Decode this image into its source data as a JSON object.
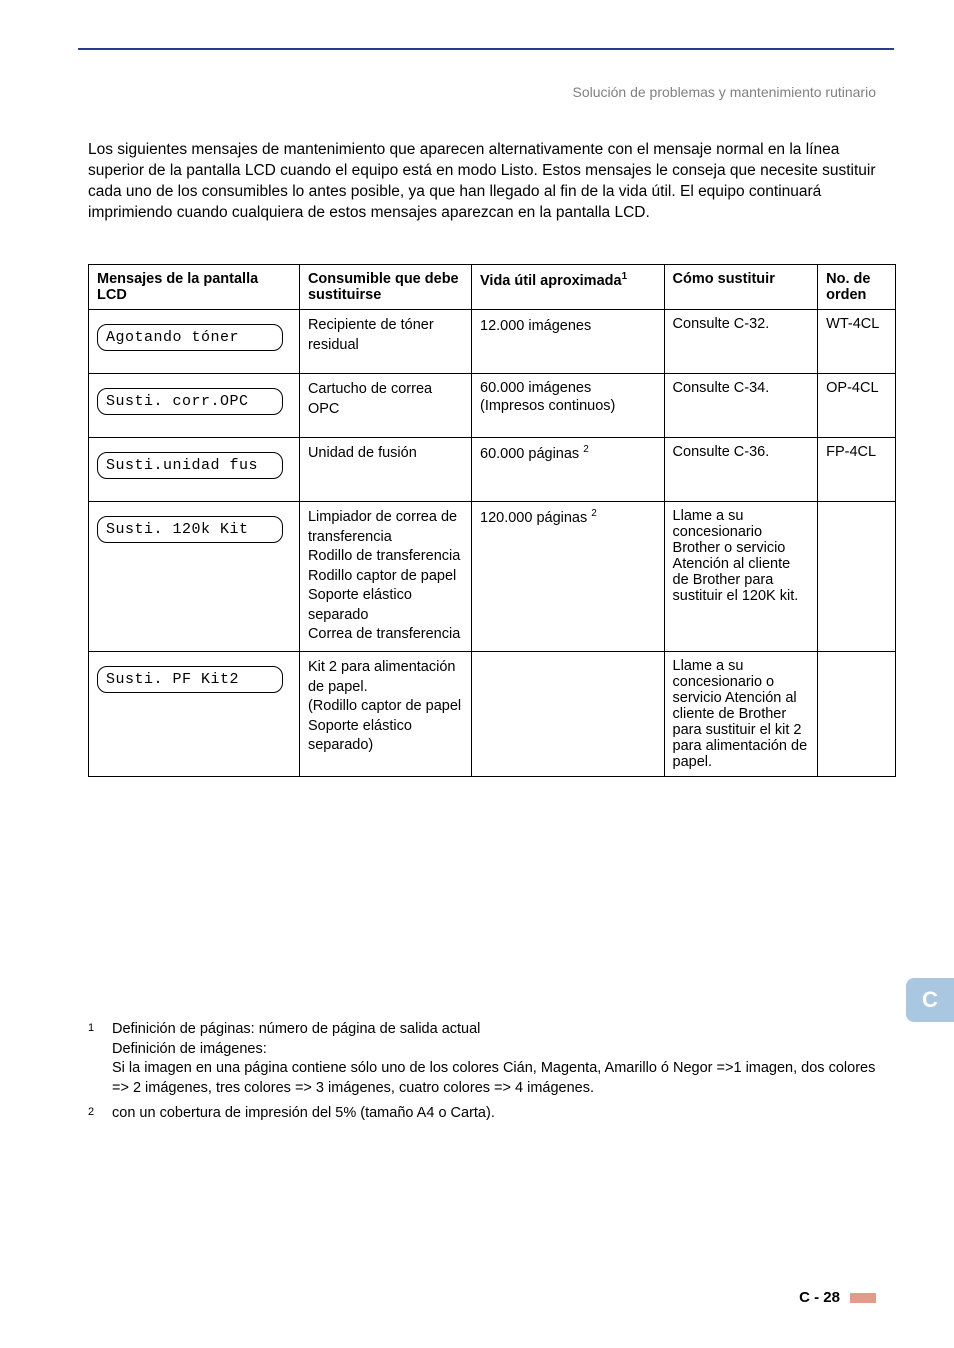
{
  "header": {
    "section": "Solución de problemas y mantenimiento rutinario"
  },
  "intro": "Los siguientes mensajes de mantenimiento que aparecen alternativamente con el mensaje normal en la línea superior de la pantalla LCD cuando el equipo está en modo Listo. Estos mensajes le conseja que necesite sustituir cada uno de los consumibles lo antes posible, ya que han llegado al fin de la vida útil. El equipo continuará imprimiendo cuando cualquiera de estos mensajes aparezcan en la pantalla LCD.",
  "table": {
    "headers": {
      "col1": "Mensajes de la pantalla LCD",
      "col2": "Consumible que debe sustituirse",
      "col3_pre": "Vida útil aproximada",
      "col3_sup": "1",
      "col4": "Cómo sustituir",
      "col5": "No. de orden"
    },
    "rows": [
      {
        "lcd": "Agotando tóner",
        "consumible": "Recipiente de tóner residual",
        "vida": "12.000 imágenes",
        "vida_sup": "",
        "como": "Consulte C-32.",
        "orden": "WT-4CL"
      },
      {
        "lcd": "Susti. corr.OPC",
        "consumible": "Cartucho de correa OPC",
        "vida": "60.000 imágenes (Impresos continuos)",
        "vida_sup": "",
        "como": "Consulte C-34.",
        "orden": "OP-4CL"
      },
      {
        "lcd": "Susti.unidad fus",
        "consumible": "Unidad de fusión",
        "vida": "60.000 páginas ",
        "vida_sup": "2",
        "como": "Consulte C-36.",
        "orden": "FP-4CL"
      },
      {
        "lcd": "Susti. 120k Kit",
        "consumible": "Limpiador de correa de transferencia\nRodillo de transferencia\nRodillo captor de papel\nSoporte elástico separado\nCorrea de transferencia",
        "vida": "120.000 páginas ",
        "vida_sup": "2",
        "como": "Llame a su concesionario Brother o servicio Atención al cliente de Brother para sustituir el 120K kit.",
        "orden": ""
      },
      {
        "lcd": "Susti. PF Kit2",
        "consumible": "Kit 2 para alimentación de papel.\n(Rodillo captor de papel\nSoporte elástico separado)",
        "vida": "",
        "vida_sup": "",
        "como": "Llame a su concesionario o servicio Atención al cliente de Brother para sustituir el kit 2 para alimentación de papel.",
        "orden": ""
      }
    ]
  },
  "footnotes": {
    "f1_num": "1",
    "f1a": "Definición de páginas: número de página de salida actual",
    "f1b": "Definición de imágenes:",
    "f1c": "Si la imagen en una página contiene sólo uno de los colores Cián, Magenta, Amarillo ó Negor =>1 imagen, dos colores => 2 imágenes, tres colores => 3 imágenes, cuatro colores => 4 imágenes.",
    "f2_num": "2",
    "f2": "con un cobertura de impresión del 5% (tamaño A4 o Carta)."
  },
  "side_tab": "C",
  "page_number": "C - 28"
}
